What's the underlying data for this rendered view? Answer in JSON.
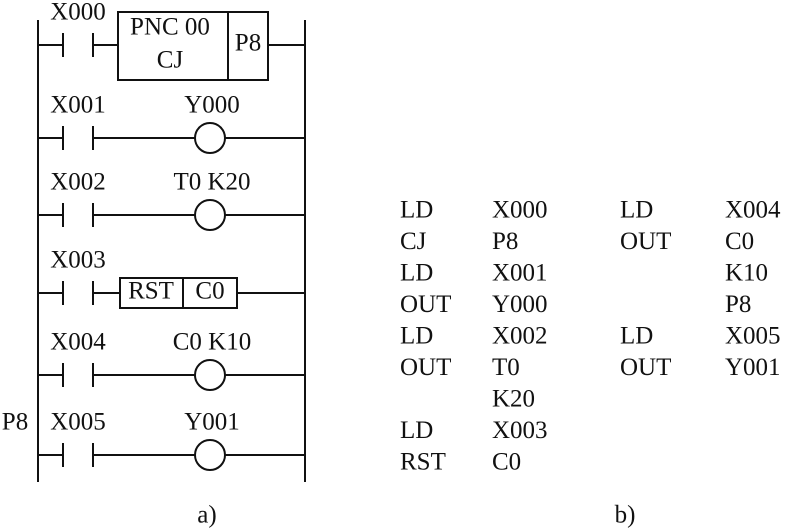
{
  "ladder": {
    "rungs": [
      {
        "contact": "X000",
        "instruction": {
          "lines": [
            "PNC 00",
            "CJ"
          ],
          "pointer": "P8"
        }
      },
      {
        "contact": "X001",
        "coil": "Y000"
      },
      {
        "contact": "X002",
        "coil": "T0 K20"
      },
      {
        "contact": "X003",
        "instruction": {
          "cells": [
            "RST",
            "C0"
          ]
        }
      },
      {
        "contact": "X004",
        "coil": "C0 K10"
      },
      {
        "label": "P8",
        "contact": "X005",
        "coil": "Y001"
      }
    ],
    "caption": "a)"
  },
  "program": {
    "columns": [
      [
        {
          "op": "LD",
          "operands": [
            "X000"
          ]
        },
        {
          "op": "CJ",
          "operands": [
            "P8"
          ]
        },
        {
          "op": "LD",
          "operands": [
            "X001"
          ]
        },
        {
          "op": "OUT",
          "operands": [
            "Y000"
          ]
        },
        {
          "op": "LD",
          "operands": [
            "X002"
          ]
        },
        {
          "op": "OUT",
          "operands": [
            "T0",
            "K20"
          ]
        },
        {
          "op": "LD",
          "operands": [
            "X003"
          ]
        },
        {
          "op": "RST",
          "operands": [
            "C0"
          ]
        }
      ],
      [
        {
          "op": "LD",
          "operands": [
            "X004"
          ]
        },
        {
          "op": "OUT",
          "operands": [
            "C0",
            "K10",
            "P8"
          ]
        },
        {
          "op": "LD",
          "operands": [
            "X005"
          ]
        },
        {
          "op": "OUT",
          "operands": [
            "Y001"
          ]
        }
      ]
    ],
    "caption": "b)"
  }
}
